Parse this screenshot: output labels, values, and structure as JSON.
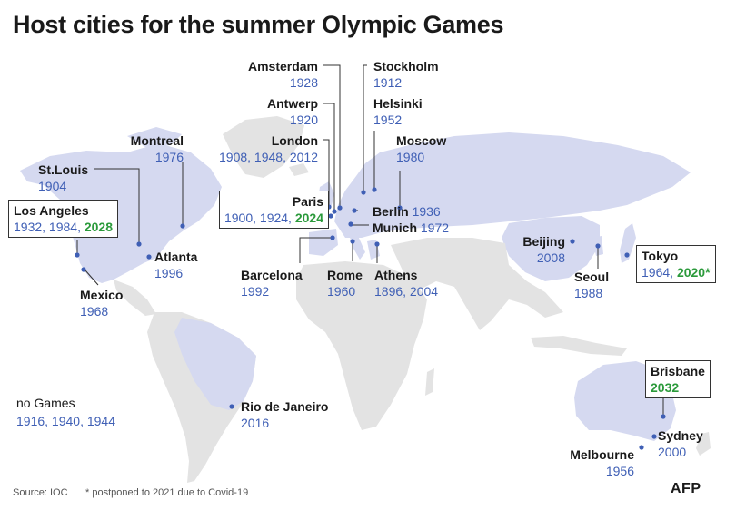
{
  "title": "Host cities for the summer Olympic Games",
  "colors": {
    "host_land": "#d5d9f0",
    "other_land": "#e3e3e3",
    "dot": "#3f5fb5",
    "years": "#3f5fb5",
    "future_years": "#2b9a3b"
  },
  "cities": [
    {
      "id": "amsterdam",
      "name": "Amsterdam",
      "years": "1928"
    },
    {
      "id": "antwerp",
      "name": "Antwerp",
      "years": "1920"
    },
    {
      "id": "london",
      "name": "London",
      "years": "1908, 1948, 2012"
    },
    {
      "id": "stockholm",
      "name": "Stockholm",
      "years": "1912"
    },
    {
      "id": "helsinki",
      "name": "Helsinki",
      "years": "1952"
    },
    {
      "id": "moscow",
      "name": "Moscow",
      "years": "1980"
    },
    {
      "id": "montreal",
      "name": "Montreal",
      "years": "1976"
    },
    {
      "id": "stlouis",
      "name": "St.Louis",
      "years": "1904"
    },
    {
      "id": "losangeles",
      "name": "Los Angeles",
      "years": "1932, 1984, ",
      "future": "2028"
    },
    {
      "id": "atlanta",
      "name": "Atlanta",
      "years": "1996"
    },
    {
      "id": "mexico",
      "name": "Mexico",
      "years": "1968"
    },
    {
      "id": "paris",
      "name": "Paris",
      "years": "1900, 1924, ",
      "future": "2024"
    },
    {
      "id": "berlin",
      "name": "Berlin",
      "years": " 1936"
    },
    {
      "id": "munich",
      "name": "Munich",
      "years": " 1972"
    },
    {
      "id": "barcelona",
      "name": "Barcelona",
      "years": "1992"
    },
    {
      "id": "rome",
      "name": "Rome",
      "years": "1960"
    },
    {
      "id": "athens",
      "name": "Athens",
      "years": "1896, 2004"
    },
    {
      "id": "beijing",
      "name": "Beijing",
      "years": "2008"
    },
    {
      "id": "seoul",
      "name": "Seoul",
      "years": "1988"
    },
    {
      "id": "tokyo",
      "name": "Tokyo",
      "years": "1964, ",
      "future": "2020*"
    },
    {
      "id": "rio",
      "name": "Rio de Janeiro",
      "years": "2016"
    },
    {
      "id": "brisbane",
      "name": "Brisbane",
      "years": "",
      "future": "2032"
    },
    {
      "id": "sydney",
      "name": "Sydney",
      "years": "2000"
    },
    {
      "id": "melbourne",
      "name": "Melbourne",
      "years": "1956"
    }
  ],
  "no_games": {
    "label": "no Games",
    "years": "1916, 1940, 1944"
  },
  "footer": {
    "source": "Source: IOC",
    "note": "* postponed to 2021 due to Covid-19",
    "logo": "AFP"
  }
}
